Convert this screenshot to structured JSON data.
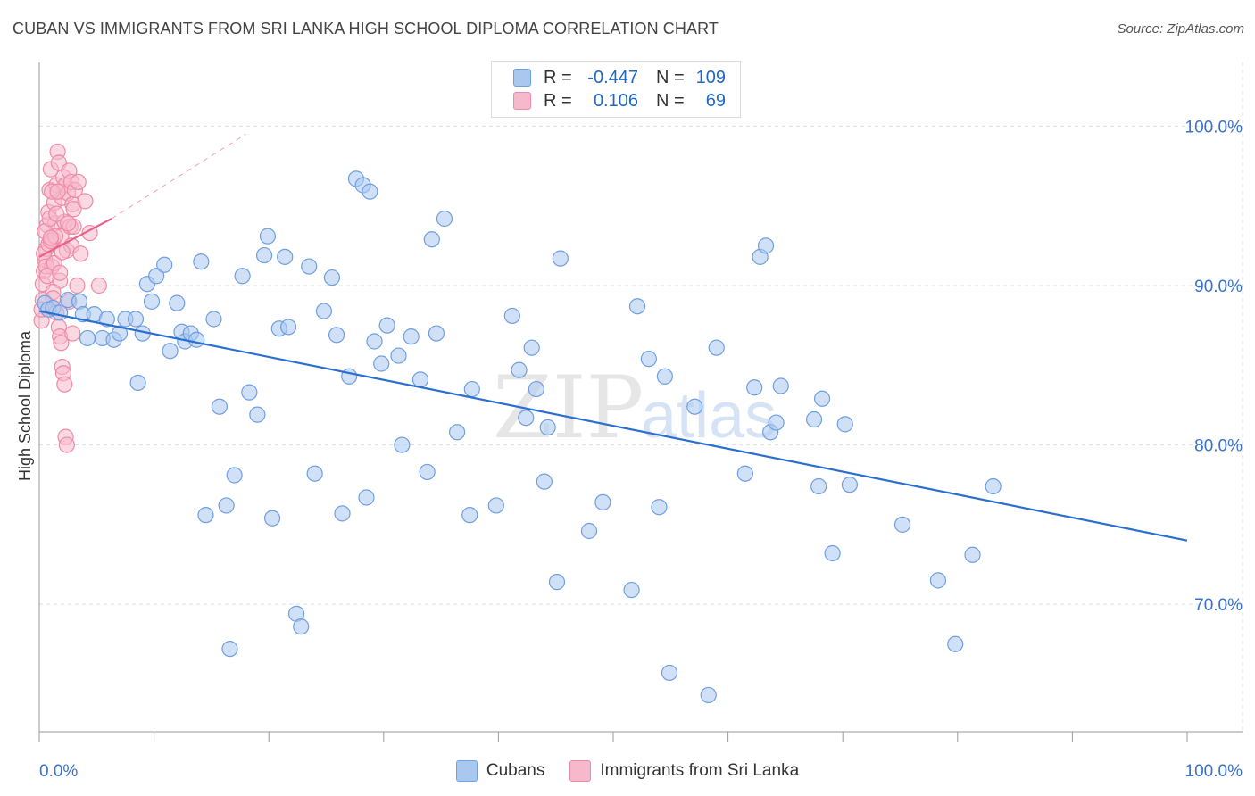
{
  "title": "CUBAN VS IMMIGRANTS FROM SRI LANKA HIGH SCHOOL DIPLOMA CORRELATION CHART",
  "source": "Source: ZipAtlas.com",
  "watermark": {
    "zip": "ZIP",
    "atlas": "atlas"
  },
  "legend": {
    "rows": [
      {
        "r_label": "R =",
        "r_value": "-0.447",
        "n_label": "N =",
        "n_value": "109"
      },
      {
        "r_label": "R =",
        "r_value": "0.106",
        "n_label": "N =",
        "n_value": "69"
      }
    ]
  },
  "colors": {
    "cubans_fill": "#a9c8f0",
    "cubans_stroke": "#6f9fe0",
    "cubans_line": "#2a6fcf",
    "srilanka_fill": "#f6b9cc",
    "srilanka_stroke": "#ef8aa8",
    "srilanka_line": "#e8628a",
    "axis_text": "#3a72c8",
    "grid": "#dddddd"
  },
  "chart_data": {
    "type": "scatter",
    "xlabel": "",
    "ylabel": "High School Diploma",
    "xlim": [
      0,
      100
    ],
    "ylim": [
      62,
      104
    ],
    "x_tick_labels": [
      "0.0%",
      "100.0%"
    ],
    "y_ticks": [
      70,
      80,
      90,
      100
    ],
    "y_tick_labels": [
      "70.0%",
      "80.0%",
      "90.0%",
      "100.0%"
    ],
    "grid": true,
    "legend_position": "bottom-center",
    "series": [
      {
        "name": "Cubans",
        "trend": {
          "x": [
            0,
            100
          ],
          "y": [
            88.4,
            74.0
          ]
        },
        "points": [
          [
            0.5,
            88.9
          ],
          [
            0.8,
            88.5
          ],
          [
            1.2,
            88.6
          ],
          [
            1.8,
            88.3
          ],
          [
            2.5,
            89.1
          ],
          [
            3.5,
            89.0
          ],
          [
            3.8,
            88.2
          ],
          [
            4.2,
            86.7
          ],
          [
            4.8,
            88.2
          ],
          [
            5.5,
            86.7
          ],
          [
            5.9,
            87.9
          ],
          [
            6.5,
            86.6
          ],
          [
            7.0,
            87.0
          ],
          [
            7.5,
            87.9
          ],
          [
            8.4,
            87.9
          ],
          [
            8.6,
            83.9
          ],
          [
            9.0,
            87.0
          ],
          [
            9.4,
            90.1
          ],
          [
            9.8,
            89.0
          ],
          [
            10.2,
            90.6
          ],
          [
            10.9,
            91.3
          ],
          [
            11.4,
            85.9
          ],
          [
            12.0,
            88.9
          ],
          [
            12.4,
            87.1
          ],
          [
            12.7,
            86.5
          ],
          [
            13.2,
            87.0
          ],
          [
            13.7,
            86.6
          ],
          [
            14.1,
            91.5
          ],
          [
            14.5,
            75.6
          ],
          [
            15.2,
            87.9
          ],
          [
            15.7,
            82.4
          ],
          [
            16.3,
            76.2
          ],
          [
            16.6,
            67.2
          ],
          [
            17.0,
            78.1
          ],
          [
            17.7,
            90.6
          ],
          [
            18.3,
            83.3
          ],
          [
            19.0,
            81.9
          ],
          [
            19.6,
            91.9
          ],
          [
            19.9,
            93.1
          ],
          [
            20.3,
            75.4
          ],
          [
            20.9,
            87.3
          ],
          [
            21.4,
            91.8
          ],
          [
            21.7,
            87.4
          ],
          [
            22.4,
            69.4
          ],
          [
            22.8,
            68.6
          ],
          [
            23.5,
            91.2
          ],
          [
            24.0,
            78.2
          ],
          [
            24.8,
            88.4
          ],
          [
            25.5,
            90.5
          ],
          [
            25.9,
            86.9
          ],
          [
            26.4,
            75.7
          ],
          [
            27.0,
            84.3
          ],
          [
            27.6,
            96.7
          ],
          [
            28.2,
            96.3
          ],
          [
            28.5,
            76.7
          ],
          [
            28.8,
            95.9
          ],
          [
            29.2,
            86.5
          ],
          [
            29.8,
            85.1
          ],
          [
            30.3,
            87.5
          ],
          [
            31.3,
            85.6
          ],
          [
            31.6,
            80.0
          ],
          [
            32.4,
            86.8
          ],
          [
            33.2,
            84.1
          ],
          [
            33.8,
            78.3
          ],
          [
            34.2,
            92.9
          ],
          [
            34.6,
            87.0
          ],
          [
            35.3,
            94.2
          ],
          [
            36.4,
            80.8
          ],
          [
            37.5,
            75.6
          ],
          [
            37.7,
            83.5
          ],
          [
            39.8,
            76.2
          ],
          [
            41.2,
            88.1
          ],
          [
            41.8,
            84.7
          ],
          [
            42.4,
            81.7
          ],
          [
            42.9,
            86.1
          ],
          [
            43.3,
            83.5
          ],
          [
            44.0,
            77.7
          ],
          [
            44.3,
            81.1
          ],
          [
            45.1,
            71.4
          ],
          [
            45.4,
            91.7
          ],
          [
            47.9,
            74.6
          ],
          [
            49.1,
            76.4
          ],
          [
            51.6,
            70.9
          ],
          [
            52.1,
            88.7
          ],
          [
            53.1,
            85.4
          ],
          [
            54.0,
            76.1
          ],
          [
            54.5,
            84.3
          ],
          [
            54.9,
            65.7
          ],
          [
            57.1,
            82.4
          ],
          [
            58.3,
            64.3
          ],
          [
            59.0,
            86.1
          ],
          [
            61.5,
            78.2
          ],
          [
            62.3,
            83.6
          ],
          [
            62.8,
            91.8
          ],
          [
            63.3,
            92.5
          ],
          [
            63.7,
            80.8
          ],
          [
            64.2,
            81.4
          ],
          [
            64.6,
            83.7
          ],
          [
            67.5,
            81.6
          ],
          [
            67.9,
            77.4
          ],
          [
            68.2,
            82.9
          ],
          [
            69.1,
            73.2
          ],
          [
            70.2,
            81.3
          ],
          [
            70.6,
            77.5
          ],
          [
            75.2,
            75.0
          ],
          [
            78.3,
            71.5
          ],
          [
            79.8,
            67.5
          ],
          [
            81.3,
            73.1
          ],
          [
            83.1,
            77.4
          ]
        ]
      },
      {
        "name": "Immigrants from Sri Lanka",
        "trend": {
          "x": [
            0,
            6.3
          ],
          "y": [
            91.8,
            94.2
          ]
        },
        "trend_extension": {
          "x": [
            6.3,
            18.0
          ],
          "y": [
            94.2,
            99.5
          ]
        },
        "points": [
          [
            0.2,
            87.8
          ],
          [
            0.3,
            89.1
          ],
          [
            0.4,
            90.9
          ],
          [
            0.5,
            91.6
          ],
          [
            0.6,
            92.3
          ],
          [
            0.7,
            93.8
          ],
          [
            0.8,
            94.6
          ],
          [
            0.9,
            96.0
          ],
          [
            1.0,
            97.3
          ],
          [
            1.1,
            91.2
          ],
          [
            1.2,
            92.9
          ],
          [
            1.3,
            95.2
          ],
          [
            1.4,
            93.9
          ],
          [
            1.5,
            96.3
          ],
          [
            1.6,
            98.4
          ],
          [
            1.7,
            97.7
          ],
          [
            1.8,
            90.3
          ],
          [
            1.9,
            93.1
          ],
          [
            2.0,
            95.5
          ],
          [
            2.1,
            96.8
          ],
          [
            2.2,
            94.0
          ],
          [
            2.3,
            96.3
          ],
          [
            2.4,
            92.2
          ],
          [
            2.5,
            95.8
          ],
          [
            2.6,
            97.2
          ],
          [
            2.7,
            93.7
          ],
          [
            2.8,
            96.5
          ],
          [
            2.9,
            95.1
          ],
          [
            3.0,
            94.8
          ],
          [
            3.1,
            96.0
          ],
          [
            0.2,
            88.5
          ],
          [
            0.3,
            90.1
          ],
          [
            0.4,
            92.0
          ],
          [
            0.5,
            93.4
          ],
          [
            0.6,
            91.2
          ],
          [
            0.7,
            90.6
          ],
          [
            0.8,
            92.6
          ],
          [
            0.9,
            94.2
          ],
          [
            1.0,
            92.8
          ],
          [
            1.1,
            95.9
          ],
          [
            1.2,
            89.6
          ],
          [
            1.3,
            91.4
          ],
          [
            1.4,
            93.1
          ],
          [
            1.5,
            94.5
          ],
          [
            1.6,
            95.9
          ],
          [
            1.7,
            87.4
          ],
          [
            1.8,
            86.8
          ],
          [
            1.9,
            86.4
          ],
          [
            2.0,
            84.9
          ],
          [
            2.1,
            84.5
          ],
          [
            2.2,
            83.8
          ],
          [
            2.3,
            80.5
          ],
          [
            2.4,
            80.0
          ],
          [
            2.6,
            89.0
          ],
          [
            2.8,
            92.5
          ],
          [
            3.0,
            93.7
          ],
          [
            3.3,
            90.0
          ],
          [
            3.6,
            92.0
          ],
          [
            4.0,
            95.3
          ],
          [
            4.4,
            93.3
          ],
          [
            5.2,
            90.0
          ],
          [
            1.0,
            93.0
          ],
          [
            1.2,
            89.2
          ],
          [
            1.5,
            88.3
          ],
          [
            1.8,
            90.8
          ],
          [
            2.0,
            92.1
          ],
          [
            2.5,
            93.9
          ],
          [
            2.9,
            87.0
          ],
          [
            3.4,
            96.5
          ]
        ]
      }
    ]
  }
}
